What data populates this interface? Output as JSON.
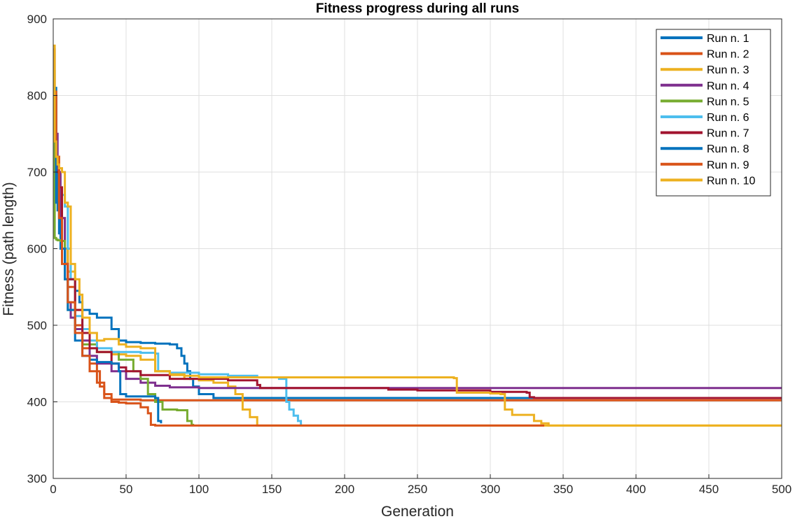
{
  "chart_data": {
    "type": "line",
    "title": "Fitness progress during all runs",
    "xlabel": "Generation",
    "ylabel": "Fitness (path length)",
    "xlim": [
      0,
      500
    ],
    "ylim": [
      300,
      900
    ],
    "xticks": [
      0,
      50,
      100,
      150,
      200,
      250,
      300,
      350,
      400,
      450,
      500
    ],
    "yticks": [
      300,
      400,
      500,
      600,
      700,
      800,
      900
    ],
    "grid": true,
    "legend_position": "top-right",
    "series": [
      {
        "name": "Run n. 1",
        "color": "#0072BD",
        "step": true,
        "x": [
          0,
          1,
          2,
          3,
          5,
          8,
          10,
          12,
          15,
          18,
          20,
          25,
          30,
          40,
          45,
          50,
          60,
          70,
          75,
          80,
          85,
          88,
          90,
          92,
          94,
          96,
          100,
          110,
          120,
          500
        ],
        "y": [
          805,
          780,
          700,
          650,
          600,
          580,
          570,
          560,
          545,
          530,
          520,
          515,
          510,
          495,
          480,
          478,
          477,
          476,
          476,
          475,
          470,
          460,
          450,
          440,
          430,
          420,
          410,
          405,
          405,
          405
        ]
      },
      {
        "name": "Run n. 2",
        "color": "#D95319",
        "step": true,
        "x": [
          0,
          2,
          4,
          6,
          10,
          15,
          20,
          25,
          30,
          32,
          35,
          40,
          50,
          60,
          65,
          70,
          80,
          100,
          140,
          145,
          150,
          500
        ],
        "y": [
          800,
          720,
          650,
          600,
          550,
          500,
          470,
          450,
          440,
          420,
          410,
          403,
          403,
          402,
          402,
          402,
          402,
          402,
          402,
          402,
          402,
          402
        ]
      },
      {
        "name": "Run n. 3",
        "color": "#EDB120",
        "step": true,
        "x": [
          0,
          2,
          4,
          6,
          8,
          10,
          15,
          20,
          25,
          30,
          40,
          50,
          60,
          70,
          80,
          90,
          100,
          110,
          120,
          125,
          130,
          135,
          140,
          500
        ],
        "y": [
          790,
          720,
          680,
          640,
          600,
          570,
          520,
          490,
          470,
          465,
          462,
          460,
          455,
          440,
          435,
          430,
          428,
          425,
          420,
          410,
          390,
          380,
          369,
          369
        ]
      },
      {
        "name": "Run n. 4",
        "color": "#7E2F8E",
        "step": true,
        "x": [
          0,
          1,
          3,
          5,
          8,
          10,
          12,
          15,
          20,
          25,
          30,
          40,
          50,
          60,
          70,
          80,
          100,
          500
        ],
        "y": [
          860,
          750,
          700,
          640,
          580,
          530,
          510,
          495,
          480,
          460,
          450,
          440,
          430,
          425,
          421,
          419,
          418,
          418
        ]
      },
      {
        "name": "Run n. 5",
        "color": "#77AC30",
        "step": true,
        "x": [
          0,
          1,
          2,
          3,
          5,
          8,
          10,
          15,
          20,
          30,
          45,
          55,
          60,
          65,
          70,
          75,
          80,
          85,
          92,
          95,
          96
        ],
        "y": [
          832,
          614,
          612,
          611,
          610,
          560,
          520,
          490,
          475,
          465,
          455,
          440,
          430,
          410,
          400,
          390,
          390,
          389,
          375,
          370,
          369
        ]
      },
      {
        "name": "Run n. 6",
        "color": "#4DBEEE",
        "step": true,
        "x": [
          0,
          2,
          4,
          6,
          8,
          10,
          12,
          15,
          20,
          25,
          30,
          40,
          50,
          60,
          70,
          72,
          80,
          100,
          120,
          140,
          155,
          160,
          162,
          165,
          168,
          170
        ],
        "y": [
          800,
          700,
          680,
          670,
          655,
          600,
          560,
          512,
          495,
          480,
          470,
          465,
          465,
          464,
          463,
          440,
          438,
          436,
          434,
          432,
          430,
          400,
          390,
          382,
          375,
          370
        ]
      },
      {
        "name": "Run n. 7",
        "color": "#A2142F",
        "step": true,
        "x": [
          0,
          2,
          4,
          6,
          8,
          10,
          15,
          20,
          25,
          30,
          40,
          45,
          50,
          60,
          80,
          100,
          120,
          140,
          142,
          150,
          200,
          230,
          250,
          300,
          325,
          327,
          330,
          500
        ],
        "y": [
          800,
          700,
          680,
          600,
          580,
          560,
          520,
          490,
          470,
          465,
          450,
          445,
          440,
          435,
          430,
          430,
          428,
          422,
          418,
          418,
          418,
          416,
          415,
          413,
          412,
          406,
          405,
          405
        ]
      },
      {
        "name": "Run n. 8",
        "color": "#0072BD",
        "step": true,
        "x": [
          0,
          2,
          4,
          6,
          8,
          10,
          15,
          20,
          25,
          30,
          40,
          45,
          46,
          50,
          60,
          70,
          72,
          74
        ],
        "y": [
          810,
          660,
          620,
          600,
          560,
          520,
          480,
          460,
          455,
          452,
          450,
          440,
          410,
          407,
          407,
          405,
          375,
          372
        ]
      },
      {
        "name": "Run n. 9",
        "color": "#D95319",
        "step": true,
        "x": [
          0,
          2,
          4,
          6,
          10,
          15,
          20,
          25,
          30,
          35,
          40,
          45,
          50,
          60,
          65,
          67,
          70,
          100,
          200,
          300,
          337
        ],
        "y": [
          805,
          720,
          640,
          580,
          530,
          490,
          460,
          440,
          425,
          405,
          400,
          399,
          398,
          393,
          385,
          370,
          369,
          369,
          369,
          369,
          369
        ]
      },
      {
        "name": "Run n. 10",
        "color": "#EDB120",
        "step": true,
        "x": [
          0,
          1,
          2,
          3,
          4,
          6,
          8,
          10,
          12,
          15,
          18,
          20,
          25,
          30,
          35,
          45,
          50,
          60,
          70,
          80,
          90,
          100,
          200,
          250,
          275,
          277,
          280,
          300,
          307,
          310,
          315,
          320,
          330,
          335,
          340,
          500
        ],
        "y": [
          865,
          740,
          720,
          710,
          705,
          700,
          660,
          655,
          580,
          560,
          540,
          510,
          490,
          480,
          482,
          475,
          472,
          470,
          440,
          436,
          434,
          432,
          432,
          432,
          431,
          412,
          412,
          411,
          410,
          390,
          383,
          383,
          375,
          372,
          369,
          369
        ]
      }
    ]
  }
}
